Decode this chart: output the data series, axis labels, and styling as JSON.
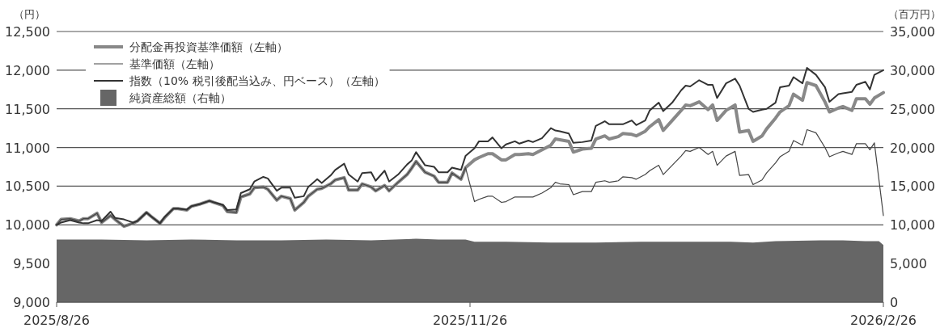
{
  "chart_data": {
    "type": "line",
    "ylabel": "（円）",
    "y2label": "（百万円）",
    "x": [
      "2025-08-26",
      "2025-08-27",
      "2025-08-29",
      "2025-08-31",
      "2025-09-01",
      "2025-09-02",
      "2025-09-04",
      "2025-09-05",
      "2025-09-07",
      "2025-09-08",
      "2025-09-10",
      "2025-09-12",
      "2025-09-13",
      "2025-09-15",
      "2025-09-16",
      "2025-09-18",
      "2025-09-19",
      "2025-09-21",
      "2025-09-22",
      "2025-09-24",
      "2025-09-25",
      "2025-09-27",
      "2025-09-29",
      "2025-09-30",
      "2025-10-02",
      "2025-10-03",
      "2025-10-05",
      "2025-10-06",
      "2025-10-08",
      "2025-10-09",
      "2025-10-11",
      "2025-10-12",
      "2025-10-14",
      "2025-10-15",
      "2025-10-17",
      "2025-10-18",
      "2025-10-20",
      "2025-10-21",
      "2025-10-23",
      "2025-10-24",
      "2025-10-26",
      "2025-10-27",
      "2025-10-29",
      "2025-10-30",
      "2025-11-01",
      "2025-11-02",
      "2025-11-04",
      "2025-11-05",
      "2025-11-07",
      "2025-11-08",
      "2025-11-10",
      "2025-11-12",
      "2025-11-13",
      "2025-11-14",
      "2025-11-16",
      "2025-11-18",
      "2025-11-19",
      "2025-11-21",
      "2025-11-22",
      "2025-11-24",
      "2025-11-25",
      "2025-11-27",
      "2025-11-28",
      "2025-11-30",
      "2025-12-01",
      "2025-12-03",
      "2025-12-04",
      "2025-12-06",
      "2025-12-07",
      "2025-12-09",
      "2025-12-10",
      "2025-12-12",
      "2025-12-14",
      "2025-12-15",
      "2025-12-16",
      "2025-12-18",
      "2025-12-19",
      "2025-12-21",
      "2025-12-23",
      "2025-12-24",
      "2025-12-26",
      "2025-12-27",
      "2025-12-29",
      "2025-12-30",
      "2026-01-01",
      "2026-01-02",
      "2026-01-04",
      "2026-01-05",
      "2026-01-07",
      "2026-01-08",
      "2026-01-10",
      "2026-01-12",
      "2026-01-13",
      "2026-01-14",
      "2026-01-16",
      "2026-01-18",
      "2026-01-19",
      "2026-01-20",
      "2026-01-22",
      "2026-01-24",
      "2026-01-25",
      "2026-01-27",
      "2026-01-28",
      "2026-01-30",
      "2026-01-31",
      "2026-02-02",
      "2026-02-03",
      "2026-02-05",
      "2026-02-06",
      "2026-02-08",
      "2026-02-09",
      "2026-02-11",
      "2026-02-13",
      "2026-02-14",
      "2026-02-16",
      "2026-02-17",
      "2026-02-19",
      "2026-02-20",
      "2026-02-22",
      "2026-02-23",
      "2026-02-24",
      "2026-02-26"
    ],
    "series": [
      {
        "name": "純資産総額（右軸）",
        "type": "area",
        "axis": "y2",
        "color": "#666666",
        "x": [
          "2025-08-26",
          "2025-09-05",
          "2025-09-15",
          "2025-09-25",
          "2025-10-05",
          "2025-10-15",
          "2025-10-25",
          "2025-11-04",
          "2025-11-14",
          "2025-11-19",
          "2025-11-24",
          "2025-11-25",
          "2025-11-27",
          "2025-12-04",
          "2025-12-14",
          "2025-12-24",
          "2026-01-03",
          "2026-01-13",
          "2026-01-23",
          "2026-01-28",
          "2026-02-02",
          "2026-02-12",
          "2026-02-17",
          "2026-02-22",
          "2026-02-25",
          "2026-02-26"
        ],
        "values": [
          8100,
          8100,
          8000,
          8100,
          8000,
          8000,
          8100,
          8000,
          8200,
          8100,
          8100,
          8100,
          7800,
          7800,
          7700,
          7700,
          7800,
          7800,
          7800,
          7700,
          7900,
          8000,
          8000,
          7900,
          7900,
          7400
        ]
      },
      {
        "name": "分配金再投資基準価額（左軸）",
        "color": "#888888",
        "values": [
          10000,
          10070,
          10080,
          10050,
          10080,
          10080,
          10150,
          10030,
          10120,
          10070,
          9980,
          10020,
          10050,
          10160,
          10110,
          10020,
          10090,
          10210,
          10210,
          10190,
          10240,
          10270,
          10310,
          10290,
          10250,
          10170,
          10160,
          10360,
          10400,
          10480,
          10490,
          10460,
          10320,
          10370,
          10340,
          10190,
          10290,
          10370,
          10460,
          10470,
          10530,
          10580,
          10610,
          10450,
          10450,
          10530,
          10490,
          10440,
          10510,
          10440,
          10550,
          10650,
          10730,
          10820,
          10680,
          10630,
          10550,
          10550,
          10670,
          10590,
          10740,
          10840,
          10870,
          10920,
          10920,
          10840,
          10840,
          10910,
          10910,
          10920,
          10910,
          10970,
          11030,
          11110,
          11100,
          11080,
          10940,
          10980,
          10990,
          11110,
          11150,
          11110,
          11140,
          11180,
          11170,
          11150,
          11210,
          11270,
          11360,
          11220,
          11350,
          11480,
          11550,
          11540,
          11590,
          11490,
          11550,
          11350,
          11480,
          11550,
          11200,
          11220,
          11080,
          11150,
          11240,
          11380,
          11460,
          11540,
          11690,
          11610,
          11840,
          11800,
          11590,
          11460,
          11510,
          11530,
          11480,
          11630,
          11630,
          11560,
          11640,
          11710
        ]
      },
      {
        "name": "基準価額（左軸）",
        "color": "#444444",
        "values": [
          10000,
          10070,
          10080,
          10050,
          10080,
          10080,
          10150,
          10030,
          10120,
          10070,
          9980,
          10020,
          10050,
          10160,
          10110,
          10020,
          10090,
          10210,
          10210,
          10190,
          10240,
          10270,
          10310,
          10290,
          10250,
          10170,
          10160,
          10360,
          10400,
          10480,
          10490,
          10460,
          10320,
          10370,
          10340,
          10190,
          10290,
          10370,
          10460,
          10470,
          10530,
          10580,
          10610,
          10450,
          10450,
          10530,
          10490,
          10440,
          10510,
          10440,
          10550,
          10650,
          10730,
          10820,
          10680,
          10630,
          10550,
          10550,
          10670,
          10590,
          10740,
          10300,
          10330,
          10370,
          10370,
          10290,
          10300,
          10360,
          10360,
          10360,
          10360,
          10410,
          10480,
          10550,
          10530,
          10520,
          10390,
          10430,
          10430,
          10550,
          10570,
          10550,
          10570,
          10620,
          10610,
          10590,
          10650,
          10700,
          10770,
          10650,
          10770,
          10890,
          10960,
          10950,
          11000,
          10910,
          10950,
          10770,
          10890,
          10950,
          10640,
          10650,
          10520,
          10580,
          10670,
          10800,
          10880,
          10950,
          11090,
          11030,
          11230,
          11190,
          11000,
          10880,
          10930,
          10950,
          10910,
          11050,
          11050,
          10970,
          11060,
          10120
        ]
      },
      {
        "name": "指数（10% 税引後配当込み、円ベース）（左軸）",
        "color": "#333333",
        "values": [
          10000,
          10030,
          10060,
          10030,
          10020,
          10020,
          10060,
          10050,
          10170,
          10090,
          10070,
          10030,
          10050,
          10160,
          10110,
          10020,
          10100,
          10210,
          10210,
          10200,
          10240,
          10270,
          10310,
          10290,
          10260,
          10190,
          10200,
          10410,
          10460,
          10560,
          10620,
          10600,
          10440,
          10480,
          10480,
          10350,
          10370,
          10490,
          10590,
          10540,
          10640,
          10710,
          10790,
          10650,
          10560,
          10670,
          10680,
          10570,
          10700,
          10560,
          10650,
          10780,
          10830,
          10940,
          10770,
          10750,
          10680,
          10680,
          10740,
          10710,
          10890,
          10990,
          11080,
          11080,
          11130,
          10990,
          11040,
          11080,
          11050,
          11090,
          11070,
          11120,
          11250,
          11220,
          11210,
          11180,
          11060,
          11070,
          11090,
          11280,
          11340,
          11300,
          11300,
          11300,
          11350,
          11290,
          11350,
          11480,
          11580,
          11470,
          11580,
          11740,
          11800,
          11790,
          11870,
          11810,
          11810,
          11640,
          11830,
          11890,
          11800,
          11500,
          11460,
          11490,
          11500,
          11580,
          11780,
          11800,
          11910,
          11830,
          12030,
          11940,
          11780,
          11590,
          11690,
          11700,
          11720,
          11810,
          11850,
          11750,
          11940,
          12000
        ]
      }
    ],
    "xlim": [
      "2025-08-26",
      "2026-02-26"
    ],
    "xticks": [
      {
        "value": "2025-08-26",
        "label": "2025/8/26"
      },
      {
        "value": "2025-11-26",
        "label": "2025/11/26"
      },
      {
        "value": "2026-02-26",
        "label": "2026/2/26"
      }
    ],
    "ylim": [
      9000,
      12500
    ],
    "yticks": [
      {
        "value": 9000,
        "label": "9,000"
      },
      {
        "value": 9500,
        "label": "9,500"
      },
      {
        "value": 10000,
        "label": "10,000"
      },
      {
        "value": 10500,
        "label": "10,500"
      },
      {
        "value": 11000,
        "label": "11,000"
      },
      {
        "value": 11500,
        "label": "11,500"
      },
      {
        "value": 12000,
        "label": "12,000"
      },
      {
        "value": 12500,
        "label": "12,500"
      }
    ],
    "y2lim": [
      0,
      35000
    ],
    "y2ticks": [
      {
        "value": 0,
        "label": "0"
      },
      {
        "value": 5000,
        "label": "5,000"
      },
      {
        "value": 10000,
        "label": "10,000"
      },
      {
        "value": 15000,
        "label": "15,000"
      },
      {
        "value": 20000,
        "label": "20,000"
      },
      {
        "value": 25000,
        "label": "25,000"
      },
      {
        "value": 30000,
        "label": "30,000"
      },
      {
        "value": 35000,
        "label": "35,000"
      }
    ],
    "grid": "y",
    "legend": "top left",
    "marker": "none",
    "line_style": "solid"
  }
}
